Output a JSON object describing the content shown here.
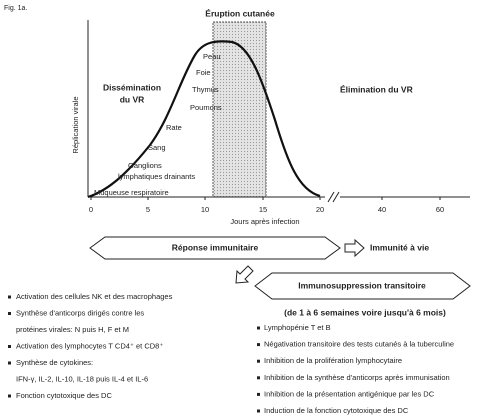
{
  "figure_label": "Fig. 1a.",
  "graph": {
    "y_axis_label": "Réplication virale",
    "x_axis_label": "Jours après infection",
    "x_ticks": [
      "0",
      "5",
      "10",
      "15",
      "20",
      "40",
      "60"
    ],
    "band_label": "Éruption cutanée",
    "phase_left": [
      "Dissémination",
      "du VR"
    ],
    "phase_right": "Élimination du VR",
    "organs": [
      "Peau",
      "Foie",
      "Thymus",
      "Poumons",
      "Rate",
      "Sang",
      "Ganglions",
      "lymphatiques drainants",
      "Muqueuse respiratoire"
    ]
  },
  "immune_response": "Réponse immunitaire",
  "lifelong": "Immunité à vie",
  "immunosuppression": "Immunosuppression transitoire",
  "duration": "(de 1 à 6 semaines voire jusqu'à 6 mois)",
  "left_list": [
    [
      "Activation des cellules NK et des macrophages"
    ],
    [
      "Synthèse d'anticorps dirigés contre les",
      "protéines virales: N puis H, F et M"
    ],
    [
      "Activation des lymphocytes T CD4⁺ et CD8⁺"
    ],
    [
      "Synthèse de cytokines:",
      "IFN-γ, IL-2, IL-10, IL-18 puis IL-4 et IL-6"
    ],
    [
      "Fonction cytotoxique des DC"
    ]
  ],
  "right_list": [
    "Lymphopénie T et B",
    "Négativation transitoire des tests cutanés à la tuberculine",
    "Inhibition de la prolifération lymphocytaire",
    "Inhibition de la synthèse d'anticorps après immunisation",
    "Inhibition de la présentation antigénique par les DC",
    "Induction de la fonction cytotoxique des DC"
  ]
}
